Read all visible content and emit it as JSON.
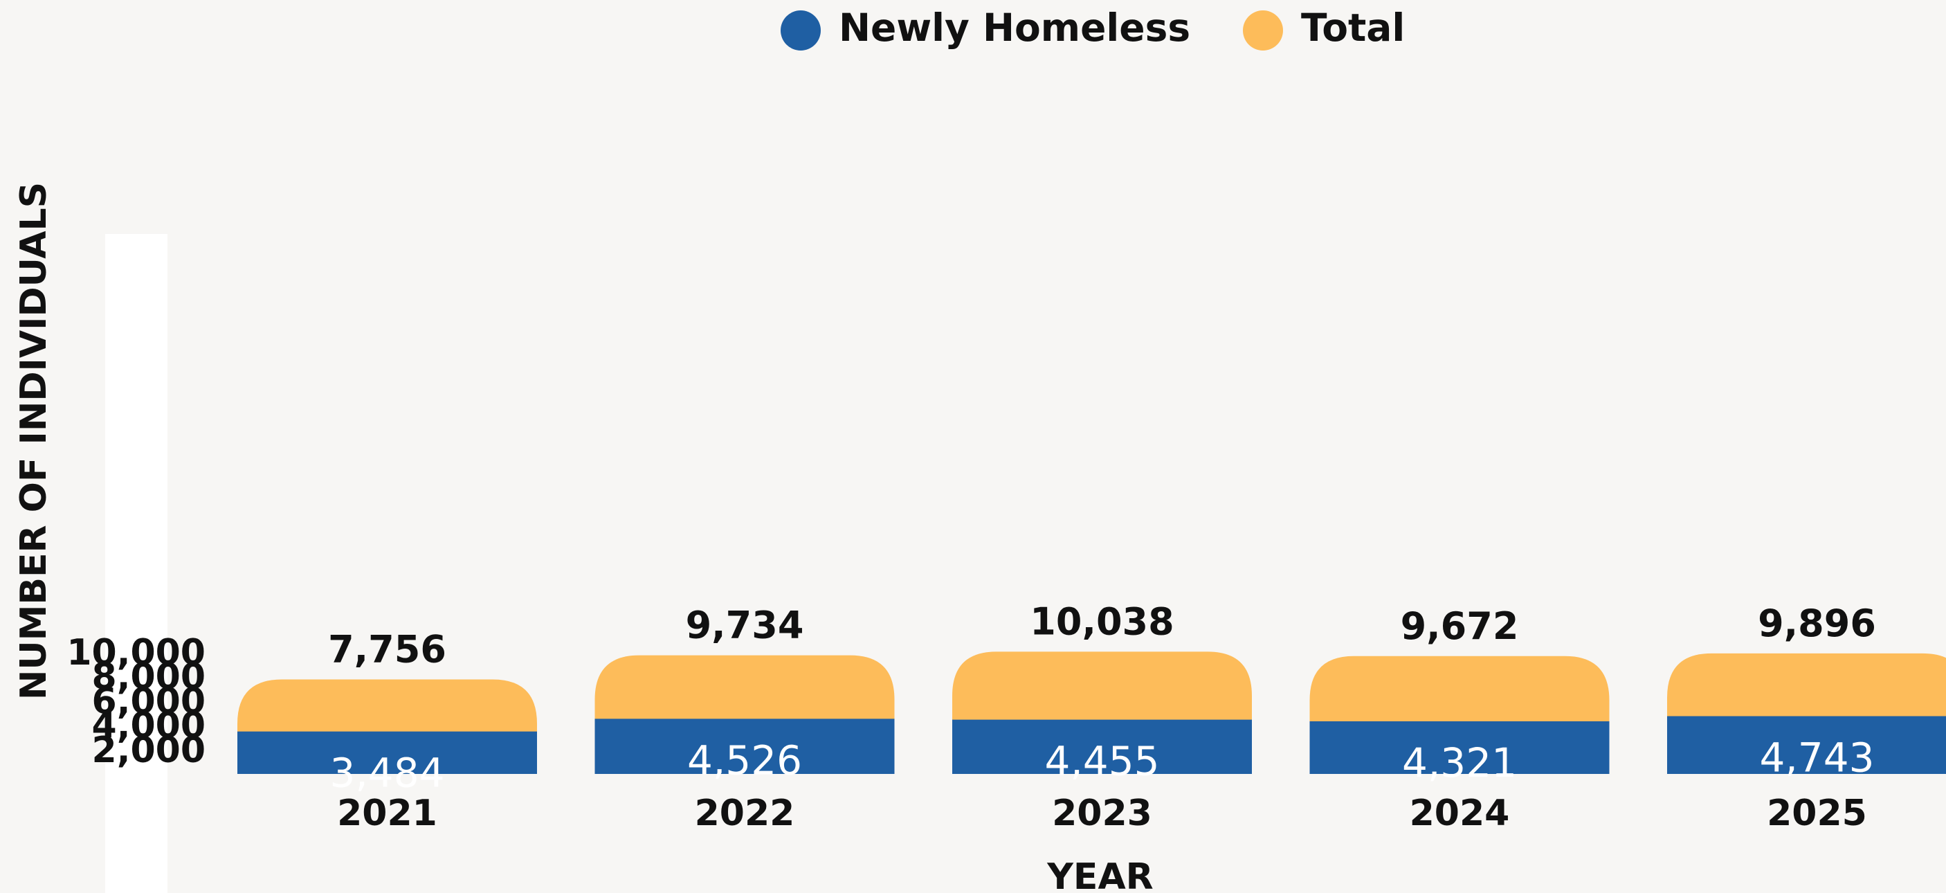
{
  "legend": {
    "newly_homeless": "Newly Homeless",
    "total": "Total"
  },
  "colors": {
    "newly_homeless": "#1f5fa3",
    "total": "#fdbc5a",
    "background": "#f7f6f4"
  },
  "chart_data": {
    "type": "bar",
    "stacked": "overlaid",
    "categories": [
      "2021",
      "2022",
      "2023",
      "2024",
      "2025"
    ],
    "series": [
      {
        "name": "Newly Homeless",
        "values": [
          3484,
          4526,
          4455,
          4321,
          4743
        ],
        "labels": [
          "3,484",
          "4,526",
          "4,455",
          "4,321",
          "4,743"
        ]
      },
      {
        "name": "Total",
        "values": [
          7756,
          9734,
          10038,
          9672,
          9896
        ],
        "labels": [
          "7,756",
          "9,734",
          "10,038",
          "9,672",
          "9,896"
        ]
      }
    ],
    "xlabel": "YEAR",
    "ylabel": "NUMBER OF INDIVIDUALS",
    "yticks": [
      2000,
      4000,
      6000,
      8000,
      10000
    ],
    "ytick_labels": [
      "2,000",
      "4,000",
      "6,000",
      "8,000",
      "10,000"
    ],
    "ylim": [
      0,
      10000
    ],
    "grid": false,
    "legend_position": "top-center"
  }
}
